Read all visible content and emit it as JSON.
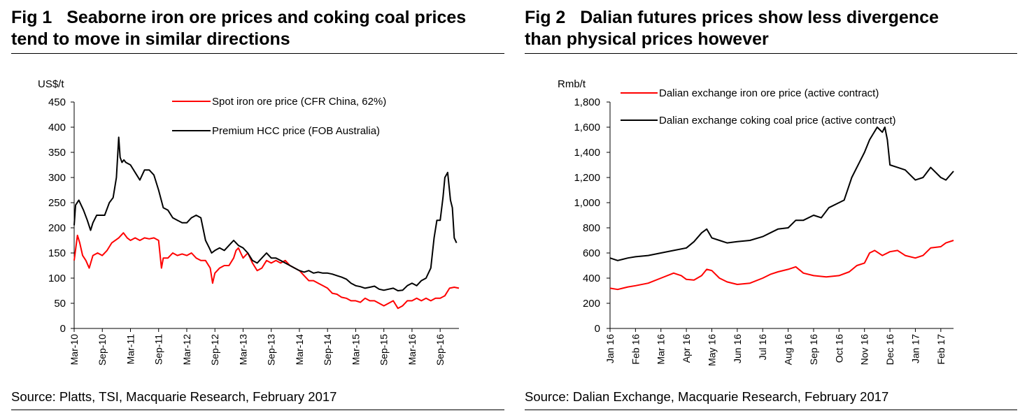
{
  "figures": [
    {
      "fig_label": "Fig 1",
      "title": "Seaborne iron ore prices and coking coal prices\ntend to move in similar directions",
      "source": "Source: Platts, TSI, Macquarie Research, February 2017"
    },
    {
      "fig_label": "Fig 2",
      "title": "Dalian futures prices show less divergence\nthan physical prices however",
      "source": "Source: Dalian Exchange, Macquarie Research, February 2017"
    }
  ],
  "chart_data": [
    {
      "type": "line",
      "title": "Seaborne iron ore prices and coking coal prices tend to move in similar directions",
      "ylabel": "US$/t",
      "xlabel": "",
      "ylim": [
        0,
        450
      ],
      "yticks": [
        0,
        50,
        100,
        150,
        200,
        250,
        300,
        350,
        400,
        450
      ],
      "x_range": [
        0,
        82
      ],
      "x_ticks": [
        {
          "t": 0,
          "label": "Mar-10"
        },
        {
          "t": 6,
          "label": "Sep-10"
        },
        {
          "t": 12,
          "label": "Mar-11"
        },
        {
          "t": 18,
          "label": "Sep-11"
        },
        {
          "t": 24,
          "label": "Mar-12"
        },
        {
          "t": 30,
          "label": "Sep-12"
        },
        {
          "t": 36,
          "label": "Mar-13"
        },
        {
          "t": 42,
          "label": "Sep-13"
        },
        {
          "t": 48,
          "label": "Mar-14"
        },
        {
          "t": 54,
          "label": "Sep-14"
        },
        {
          "t": 60,
          "label": "Mar-15"
        },
        {
          "t": 66,
          "label": "Sep-15"
        },
        {
          "t": 72,
          "label": "Mar-16"
        },
        {
          "t": 78,
          "label": "Sep-16"
        }
      ],
      "legend_position": "top-right",
      "series": [
        {
          "name": "Spot iron ore price (CFR China, 62%)",
          "color": "#ff0000",
          "t": [
            0,
            0.7,
            1.2,
            1.8,
            2.5,
            3.2,
            4,
            5,
            6,
            7,
            8,
            9.5,
            10.5,
            11.3,
            12,
            13,
            14,
            15,
            16,
            17,
            18,
            18.6,
            19,
            20,
            21,
            22,
            23,
            24,
            25,
            26,
            27,
            28,
            29,
            29.5,
            30,
            31,
            32,
            33,
            34,
            34.5,
            35,
            35.5,
            36,
            37,
            38,
            39,
            40,
            41,
            42,
            43,
            44,
            45,
            46,
            47,
            48,
            49,
            50,
            51,
            52,
            53,
            54,
            55,
            56,
            57,
            58,
            59,
            60,
            61,
            62,
            63,
            64,
            65,
            66,
            67,
            68,
            69,
            70,
            71,
            72,
            73,
            74,
            75,
            76,
            77,
            78,
            79,
            80,
            81,
            82
          ],
          "values": [
            135,
            185,
            170,
            145,
            135,
            120,
            145,
            150,
            145,
            155,
            170,
            180,
            190,
            180,
            175,
            180,
            175,
            180,
            178,
            180,
            175,
            120,
            140,
            140,
            150,
            145,
            148,
            145,
            150,
            140,
            135,
            135,
            120,
            90,
            110,
            120,
            125,
            125,
            140,
            155,
            160,
            150,
            140,
            150,
            130,
            115,
            120,
            135,
            130,
            135,
            130,
            135,
            125,
            120,
            115,
            105,
            95,
            95,
            90,
            85,
            80,
            70,
            68,
            62,
            60,
            55,
            55,
            52,
            60,
            55,
            55,
            50,
            45,
            50,
            55,
            40,
            45,
            55,
            55,
            60,
            55,
            60,
            55,
            60,
            60,
            65,
            80,
            82,
            80
          ]
        },
        {
          "name": "Premium HCC price (FOB Australia)",
          "color": "#000000",
          "t": [
            0,
            0.3,
            1,
            2,
            2.8,
            3.5,
            4,
            4.8,
            5.5,
            6.5,
            7.5,
            8.3,
            9,
            9.5,
            9.8,
            10.2,
            10.6,
            11,
            12,
            13,
            14,
            15,
            16,
            17,
            18,
            19,
            20,
            21,
            22,
            23,
            24,
            25,
            26,
            27,
            28,
            28.8,
            29.3,
            30,
            31,
            32,
            33,
            34,
            35,
            36,
            37,
            38,
            39,
            40,
            41,
            42,
            43,
            44,
            45,
            46,
            47,
            48,
            49,
            50,
            51,
            52,
            53,
            54,
            55,
            56,
            57,
            58,
            59,
            60,
            61,
            62,
            63,
            64,
            65,
            66,
            67,
            68,
            69,
            70,
            71,
            72,
            73,
            74,
            75,
            76,
            76.7,
            77.3,
            78,
            78.6,
            79,
            79.6,
            80.2,
            80.6,
            81,
            81.5
          ],
          "values": [
            205,
            245,
            255,
            235,
            215,
            195,
            210,
            225,
            225,
            225,
            250,
            260,
            300,
            380,
            340,
            330,
            335,
            330,
            325,
            310,
            295,
            315,
            315,
            305,
            275,
            240,
            235,
            220,
            215,
            210,
            210,
            220,
            225,
            220,
            175,
            160,
            150,
            155,
            160,
            155,
            165,
            175,
            165,
            160,
            150,
            135,
            130,
            140,
            150,
            140,
            140,
            135,
            130,
            125,
            120,
            115,
            112,
            115,
            110,
            112,
            110,
            110,
            108,
            105,
            102,
            98,
            90,
            85,
            83,
            80,
            82,
            84,
            78,
            76,
            78,
            80,
            75,
            76,
            85,
            90,
            85,
            95,
            100,
            120,
            180,
            215,
            215,
            260,
            300,
            310,
            255,
            240,
            180,
            170
          ]
        }
      ]
    },
    {
      "type": "line",
      "title": "Dalian futures prices show less divergence than physical prices however",
      "ylabel": "Rmb/t",
      "xlabel": "",
      "ylim": [
        0,
        1800
      ],
      "yticks": [
        0,
        200,
        400,
        600,
        800,
        1000,
        1200,
        1400,
        1600,
        1800
      ],
      "ytick_labels": [
        "0",
        "200",
        "400",
        "600",
        "800",
        "1,000",
        "1,200",
        "1,400",
        "1,600",
        "1,800"
      ],
      "x_range": [
        0,
        13.5
      ],
      "x_ticks": [
        {
          "t": 0,
          "label": "Jan 16"
        },
        {
          "t": 1,
          "label": "Feb 16"
        },
        {
          "t": 2,
          "label": "Mar 16"
        },
        {
          "t": 3,
          "label": "Apr 16"
        },
        {
          "t": 4,
          "label": "May 16"
        },
        {
          "t": 5,
          "label": "Jun 16"
        },
        {
          "t": 6,
          "label": "Jul 16"
        },
        {
          "t": 7,
          "label": "Aug 16"
        },
        {
          "t": 8,
          "label": "Sep 16"
        },
        {
          "t": 9,
          "label": "Oct 16"
        },
        {
          "t": 10,
          "label": "Nov 16"
        },
        {
          "t": 11,
          "label": "Dec 16"
        },
        {
          "t": 12,
          "label": "Jan 17"
        },
        {
          "t": 13,
          "label": "Feb 17"
        }
      ],
      "legend_position": "top-left",
      "series": [
        {
          "name": "Dalian exchange iron ore price (active contract)",
          "color": "#ff0000",
          "t": [
            0,
            0.3,
            0.7,
            1,
            1.5,
            2,
            2.5,
            2.8,
            3,
            3.3,
            3.6,
            3.8,
            4,
            4.3,
            4.6,
            5,
            5.5,
            6,
            6.3,
            6.6,
            7,
            7.3,
            7.6,
            8,
            8.5,
            9,
            9.4,
            9.7,
            10,
            10.2,
            10.4,
            10.7,
            11,
            11.3,
            11.6,
            12,
            12.3,
            12.6,
            13,
            13.2,
            13.5
          ],
          "values": [
            320,
            310,
            330,
            340,
            360,
            400,
            440,
            420,
            390,
            385,
            420,
            470,
            460,
            400,
            370,
            350,
            360,
            400,
            430,
            450,
            470,
            490,
            440,
            420,
            410,
            420,
            450,
            500,
            520,
            600,
            620,
            580,
            610,
            620,
            580,
            560,
            580,
            640,
            650,
            680,
            700
          ]
        },
        {
          "name": "Dalian exchange coking coal price (active contract)",
          "color": "#000000",
          "t": [
            0,
            0.3,
            0.7,
            1,
            1.5,
            2,
            2.5,
            3,
            3.3,
            3.6,
            3.8,
            4,
            4.3,
            4.6,
            5,
            5.5,
            6,
            6.3,
            6.6,
            7,
            7.3,
            7.6,
            8,
            8.3,
            8.6,
            9,
            9.2,
            9.5,
            9.8,
            10,
            10.2,
            10.5,
            10.7,
            10.8,
            10.9,
            11,
            11.3,
            11.6,
            12,
            12.3,
            12.6,
            13,
            13.2,
            13.5
          ],
          "values": [
            560,
            540,
            560,
            570,
            580,
            600,
            620,
            640,
            690,
            760,
            790,
            720,
            700,
            680,
            690,
            700,
            730,
            760,
            790,
            800,
            860,
            860,
            900,
            880,
            960,
            1000,
            1020,
            1200,
            1320,
            1400,
            1500,
            1600,
            1560,
            1600,
            1500,
            1300,
            1280,
            1260,
            1180,
            1200,
            1280,
            1200,
            1180,
            1250
          ]
        }
      ]
    }
  ]
}
